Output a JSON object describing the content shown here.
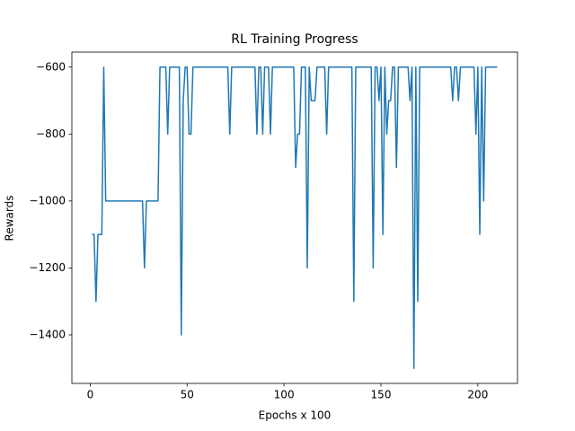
{
  "chart_data": {
    "type": "line",
    "title": "RL Training Progress",
    "x_label": "Epochs x 100",
    "y_label": "Rewards",
    "x": [
      1,
      2,
      3,
      4,
      5,
      6,
      7,
      8,
      9,
      10,
      11,
      12,
      13,
      14,
      15,
      16,
      17,
      18,
      19,
      20,
      21,
      22,
      23,
      24,
      25,
      26,
      27,
      28,
      29,
      30,
      31,
      32,
      33,
      34,
      35,
      36,
      37,
      38,
      39,
      40,
      41,
      42,
      43,
      44,
      45,
      46,
      47,
      48,
      49,
      50,
      51,
      52,
      53,
      54,
      55,
      56,
      57,
      58,
      59,
      60,
      61,
      62,
      63,
      64,
      65,
      66,
      67,
      68,
      69,
      70,
      71,
      72,
      73,
      74,
      75,
      76,
      77,
      78,
      79,
      80,
      81,
      82,
      83,
      84,
      85,
      86,
      87,
      88,
      89,
      90,
      91,
      92,
      93,
      94,
      95,
      96,
      97,
      98,
      99,
      100,
      101,
      102,
      103,
      104,
      105,
      106,
      107,
      108,
      109,
      110,
      111,
      112,
      113,
      114,
      115,
      116,
      117,
      118,
      119,
      120,
      121,
      122,
      123,
      124,
      125,
      126,
      127,
      128,
      129,
      130,
      131,
      132,
      133,
      134,
      135,
      136,
      137,
      138,
      139,
      140,
      141,
      142,
      143,
      144,
      145,
      146,
      147,
      148,
      149,
      150,
      151,
      152,
      153,
      154,
      155,
      156,
      157,
      158,
      159,
      160,
      161,
      162,
      163,
      164,
      165,
      166,
      167,
      168,
      169,
      170,
      171,
      172,
      173,
      174,
      175,
      176,
      177,
      178,
      179,
      180,
      181,
      182,
      183,
      184,
      185,
      186,
      187,
      188,
      189,
      190,
      191,
      192,
      193,
      194,
      195,
      196,
      197,
      198,
      199,
      200,
      201,
      202,
      203,
      204,
      205,
      206,
      207,
      208,
      209,
      210
    ],
    "series": [
      {
        "color": "#1f77b4",
        "values": [
          -1100,
          -1100,
          -1300,
          -1100,
          -1100,
          -1100,
          -600,
          -1000,
          -1000,
          -1000,
          -1000,
          -1000,
          -1000,
          -1000,
          -1000,
          -1000,
          -1000,
          -1000,
          -1000,
          -1000,
          -1000,
          -1000,
          -1000,
          -1000,
          -1000,
          -1000,
          -1000,
          -1200,
          -1000,
          -1000,
          -1000,
          -1000,
          -1000,
          -1000,
          -1000,
          -600,
          -600,
          -600,
          -600,
          -800,
          -600,
          -600,
          -600,
          -600,
          -600,
          -600,
          -1400,
          -700,
          -600,
          -600,
          -800,
          -800,
          -600,
          -600,
          -600,
          -600,
          -600,
          -600,
          -600,
          -600,
          -600,
          -600,
          -600,
          -600,
          -600,
          -600,
          -600,
          -600,
          -600,
          -600,
          -600,
          -800,
          -600,
          -600,
          -600,
          -600,
          -600,
          -600,
          -600,
          -600,
          -600,
          -600,
          -600,
          -600,
          -600,
          -800,
          -600,
          -600,
          -800,
          -600,
          -600,
          -600,
          -800,
          -600,
          -600,
          -600,
          -600,
          -600,
          -600,
          -600,
          -600,
          -600,
          -600,
          -600,
          -600,
          -900,
          -800,
          -800,
          -600,
          -600,
          -600,
          -1200,
          -600,
          -700,
          -700,
          -700,
          -600,
          -600,
          -600,
          -600,
          -600,
          -800,
          -600,
          -600,
          -600,
          -600,
          -600,
          -600,
          -600,
          -600,
          -600,
          -600,
          -600,
          -600,
          -600,
          -1300,
          -600,
          -600,
          -600,
          -600,
          -600,
          -600,
          -600,
          -600,
          -600,
          -1200,
          -600,
          -600,
          -700,
          -600,
          -1100,
          -600,
          -800,
          -700,
          -700,
          -600,
          -600,
          -900,
          -600,
          -600,
          -600,
          -600,
          -600,
          -600,
          -700,
          -600,
          -1500,
          -600,
          -1300,
          -600,
          -600,
          -600,
          -600,
          -600,
          -600,
          -600,
          -600,
          -600,
          -600,
          -600,
          -600,
          -600,
          -600,
          -600,
          -600,
          -600,
          -700,
          -600,
          -600,
          -700,
          -600,
          -600,
          -600,
          -600,
          -600,
          -600,
          -600,
          -600,
          -800,
          -600,
          -1100,
          -600,
          -1000,
          -600,
          -600,
          -600,
          -600,
          -600,
          -600,
          -600
        ]
      }
    ],
    "xlim": [
      -9.45,
      220.45
    ],
    "ylim": [
      -1545,
      -555
    ],
    "xticks": [
      0,
      50,
      100,
      150,
      200
    ],
    "yticks": [
      {
        "value": -1400,
        "label": "−1400"
      },
      {
        "value": -1200,
        "label": "−1200"
      },
      {
        "value": -1000,
        "label": "−1000"
      },
      {
        "value": -800,
        "label": "−800"
      },
      {
        "value": -600,
        "label": "−600"
      }
    ]
  }
}
